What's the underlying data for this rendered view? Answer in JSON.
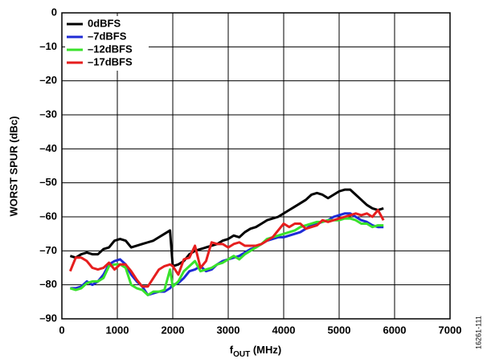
{
  "chart_data": {
    "type": "line",
    "ylabel": "WORST SPUR (dBc)",
    "xlabel": {
      "main": "f",
      "sub": "OUT",
      "rest": " (MHz)"
    },
    "note": "16261-111",
    "xlim": [
      0,
      7000
    ],
    "xticks": [
      0,
      1000,
      2000,
      3000,
      4000,
      5000,
      6000,
      7000
    ],
    "ylim": [
      -90,
      0
    ],
    "yticks": [
      {
        "value": -90,
        "label": "–90"
      },
      {
        "value": -80,
        "label": "–80"
      },
      {
        "value": -70,
        "label": "–70"
      },
      {
        "value": -60,
        "label": "–60"
      },
      {
        "value": -50,
        "label": "–50"
      },
      {
        "value": -40,
        "label": "–40"
      },
      {
        "value": -30,
        "label": "–30"
      },
      {
        "value": -20,
        "label": "–20"
      },
      {
        "value": -10,
        "label": "–10"
      },
      0
    ],
    "grid": true,
    "legend": "upper left",
    "x": [
      150,
      250,
      350,
      450,
      550,
      650,
      750,
      850,
      950,
      1050,
      1150,
      1250,
      1350,
      1450,
      1550,
      1650,
      1750,
      1850,
      1950,
      2000,
      2100,
      2200,
      2300,
      2400,
      2500,
      2600,
      2700,
      2800,
      2900,
      3000,
      3100,
      3200,
      3300,
      3400,
      3500,
      3600,
      3700,
      3800,
      3900,
      4000,
      4100,
      4200,
      4300,
      4400,
      4500,
      4600,
      4700,
      4800,
      4900,
      5000,
      5100,
      5200,
      5300,
      5400,
      5500,
      5600,
      5700,
      5800
    ],
    "series": [
      {
        "name": "0dBFS",
        "color": "#000000",
        "values": [
          -71.5,
          -72,
          -71,
          -70.5,
          -71,
          -71,
          -69.5,
          -69,
          -67,
          -66.5,
          -67,
          -69,
          -68.5,
          -68,
          -67.5,
          -67,
          -66,
          -65,
          -64,
          -74.5,
          -74,
          -73,
          -71,
          -70,
          -69.5,
          -69,
          -68.5,
          -68,
          -67,
          -66.5,
          -65.5,
          -66,
          -64.5,
          -63.5,
          -63,
          -62,
          -61,
          -60.5,
          -60,
          -59,
          -58,
          -57,
          -56,
          -55,
          -53.5,
          -53,
          -53.5,
          -54.5,
          -53.5,
          -52.5,
          -52,
          -52,
          -53.5,
          -55,
          -56.5,
          -57.5,
          -58,
          -57.5
        ]
      },
      {
        "name": "–7dBFS",
        "color": "#1f2bd6",
        "values": [
          -81,
          -81,
          -80.5,
          -79,
          -80,
          -79,
          -77,
          -74,
          -73,
          -72.5,
          -74,
          -77,
          -79,
          -80.5,
          -83,
          -82.5,
          -82,
          -82,
          -81,
          -80,
          -79.5,
          -78,
          -76,
          -75.5,
          -74.5,
          -76,
          -75.5,
          -74,
          -73,
          -72.5,
          -72,
          -71.5,
          -70.5,
          -69.5,
          -69,
          -68,
          -67,
          -66.5,
          -66,
          -66,
          -65.5,
          -65,
          -64.5,
          -63.5,
          -62.5,
          -62,
          -61.5,
          -61,
          -60,
          -59.5,
          -59,
          -59,
          -60,
          -61,
          -61.5,
          -62.5,
          -63,
          -63
        ]
      },
      {
        "name": "–12dBFS",
        "color": "#39e22b",
        "values": [
          -81,
          -81.5,
          -81,
          -79.5,
          -79,
          -79,
          -78,
          -74.5,
          -74,
          -74,
          -75,
          -80,
          -81,
          -81.5,
          -83,
          -82,
          -82,
          -81.5,
          -75.5,
          -80.5,
          -79,
          -76,
          -74.5,
          -73,
          -76,
          -75.5,
          -75,
          -74,
          -73.5,
          -72.5,
          -71.5,
          -72.5,
          -71,
          -70,
          -69,
          -68,
          -66.5,
          -66,
          -65.5,
          -65,
          -64.5,
          -64,
          -63,
          -62.5,
          -62,
          -61.5,
          -61.5,
          -61,
          -61,
          -61,
          -60.5,
          -60.5,
          -61,
          -62,
          -62,
          -63,
          -62.5,
          -62.5
        ]
      },
      {
        "name": "–17dBFS",
        "color": "#e61e1e",
        "values": [
          -76,
          -72,
          -72,
          -73,
          -75,
          -75.5,
          -75,
          -73.5,
          -75.5,
          -74,
          -74,
          -76,
          -78.5,
          -80.5,
          -80.5,
          -78,
          -75.5,
          -74.5,
          -74,
          -74.5,
          -77,
          -72.5,
          -72,
          -68.5,
          -75,
          -73,
          -67.5,
          -68,
          -68,
          -69,
          -68,
          -67.5,
          -68.5,
          -68.5,
          -68.5,
          -68,
          -67,
          -66,
          -64,
          -62,
          -63,
          -62,
          -62,
          -63.5,
          -63,
          -62.5,
          -61,
          -61.5,
          -61,
          -60.5,
          -60,
          -59.5,
          -59,
          -59.5,
          -59,
          -60,
          -58,
          -61
        ]
      }
    ]
  }
}
